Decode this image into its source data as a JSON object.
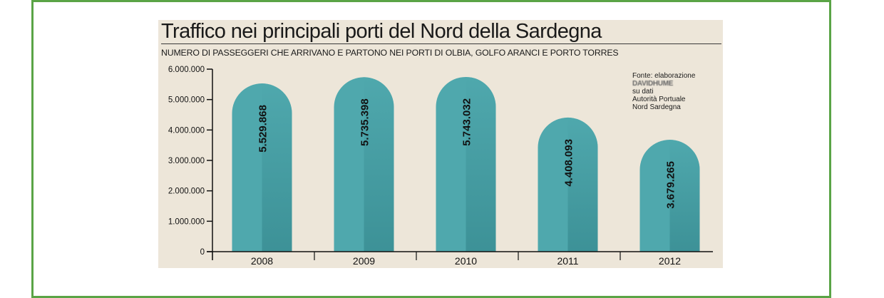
{
  "chart_data": {
    "type": "bar",
    "title": "Traffico nei principali porti del Nord della Sardegna",
    "subtitle": "NUMERO DI PASSEGGERI CHE ARRIVANO E PARTONO NEI PORTI DI OLBIA, GOLFO ARANCI E PORTO TORRES",
    "categories": [
      "2008",
      "2009",
      "2010",
      "2011",
      "2012"
    ],
    "values": [
      5529868,
      5735398,
      5743032,
      4408093,
      3679265
    ],
    "value_labels": [
      "5.529.868",
      "5.735.398",
      "5.743.032",
      "4.408.093",
      "3.679.265"
    ],
    "y_ticks": [
      "0",
      "1.000.000",
      "2.000.000",
      "3.000.000",
      "4.000.000",
      "5.000.000",
      "6.000.000"
    ],
    "y_tick_values": [
      0,
      1000000,
      2000000,
      3000000,
      4000000,
      5000000,
      6000000
    ],
    "ylim": [
      0,
      6000000
    ],
    "xlabel": "",
    "ylabel": "",
    "grid": false,
    "bar_color": "#4fa8ad",
    "bar_shade_color": "#2e7f85",
    "background_color": "#ede6d9",
    "source_note": {
      "line1": "Fonte: elaborazione",
      "line2": "DAVIDHUME",
      "line3": "su dati",
      "line4": "Autorità Portuale",
      "line5": "Nord Sardegna"
    }
  }
}
